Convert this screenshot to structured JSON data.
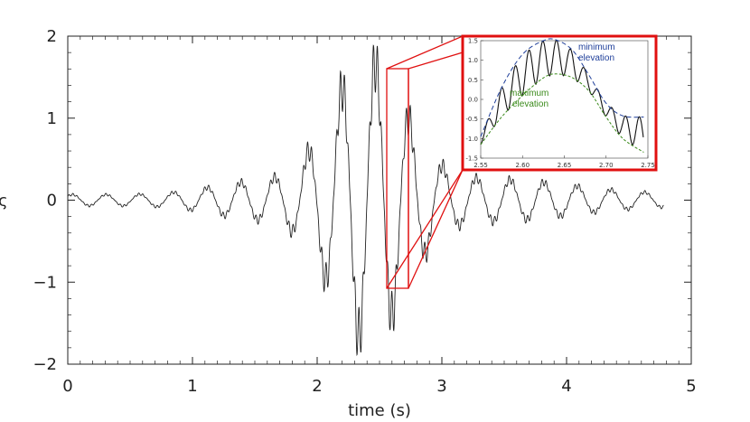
{
  "chart_data": [
    {
      "type": "line",
      "title": "",
      "xlabel": "time (s)",
      "ylabel": "",
      "xlim": [
        0,
        5
      ],
      "ylim": [
        -2,
        2
      ],
      "x_ticks": [
        "0",
        "1",
        "2",
        "3",
        "4",
        "5"
      ],
      "y_ticks": [
        "2",
        "1",
        "0",
        "−1",
        "−2"
      ],
      "y_label_fragment": "ς",
      "grid": false,
      "series": [
        {
          "color": "#222222",
          "description_points": [
            {
              "x": 0.05,
              "y": -0.05
            },
            {
              "x": 0.5,
              "y": 0.15
            },
            {
              "x": 1.0,
              "y": -0.1
            },
            {
              "x": 1.4,
              "y": 0.35
            },
            {
              "x": 1.8,
              "y": 0.5
            },
            {
              "x": 2.0,
              "y": 1.0
            },
            {
              "x": 2.2,
              "y": -1.7
            },
            {
              "x": 2.3,
              "y": 1.85
            },
            {
              "x": 2.5,
              "y": -1.75
            },
            {
              "x": 2.65,
              "y": 1.4
            },
            {
              "x": 2.75,
              "y": -1.1
            },
            {
              "x": 3.0,
              "y": 0.6
            },
            {
              "x": 3.5,
              "y": -0.4
            },
            {
              "x": 4.0,
              "y": 0.3
            },
            {
              "x": 4.5,
              "y": -0.15
            },
            {
              "x": 4.78,
              "y": -0.05
            }
          ],
          "envelope_peak_time": 2.4,
          "envelope_peak_amplitude": 1.85,
          "carrier_period": 0.27,
          "ripple_period": 0.033
        }
      ]
    },
    {
      "type": "line",
      "title": "",
      "xlabel": "",
      "ylabel": "",
      "xlim": [
        2.55,
        2.75
      ],
      "ylim": [
        -1.5,
        1.5
      ],
      "x_ticks": [
        "2.55",
        "2.60",
        "2.65",
        "2.70",
        "2.75"
      ],
      "y_ticks": [
        "1.5",
        "1.0",
        "0.5",
        "0.0",
        "-0.5",
        "-1.0",
        "-1.5"
      ],
      "annotations": [
        {
          "text_line1": "minimum",
          "text_line2": "elevation",
          "color": "#1f3f9a"
        },
        {
          "text_line1": "maximum",
          "text_line2": "elevation",
          "color": "#3a8a1a"
        }
      ],
      "series": [
        {
          "color": "#111111",
          "x": [
            2.55,
            2.57,
            2.59,
            2.61,
            2.63,
            2.65,
            2.67,
            2.69,
            2.71,
            2.73,
            2.745
          ],
          "y": [
            -1.05,
            -0.3,
            0.3,
            0.9,
            1.25,
            1.0,
            0.4,
            -0.15,
            -0.7,
            -1.15,
            -0.75
          ]
        },
        {
          "color": "#1f3f9a",
          "dash": "dashed",
          "x": [
            2.55,
            2.575,
            2.6,
            2.625,
            2.64,
            2.66,
            2.68,
            2.7,
            2.72,
            2.745
          ],
          "y": [
            -0.95,
            0.3,
            1.15,
            1.5,
            1.52,
            1.25,
            0.6,
            -0.1,
            -0.42,
            -0.45
          ]
        },
        {
          "color": "#3a8a1a",
          "dash": "dashed",
          "x": [
            2.55,
            2.575,
            2.6,
            2.625,
            2.64,
            2.66,
            2.68,
            2.7,
            2.72,
            2.745
          ],
          "y": [
            -1.15,
            -0.45,
            0.1,
            0.55,
            0.65,
            0.55,
            0.2,
            -0.45,
            -1.0,
            -1.35
          ]
        }
      ]
    }
  ],
  "colors": {
    "highlight": "#e01010",
    "axis": "#222222"
  }
}
